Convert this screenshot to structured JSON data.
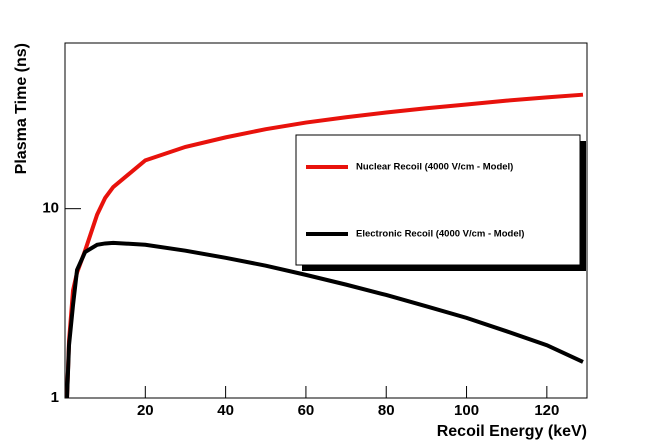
{
  "chart_data": {
    "type": "line",
    "xlabel": "Recoil Energy (keV)",
    "ylabel": "Plasma Time (ns)",
    "x": [
      0.5,
      1,
      2,
      3,
      5,
      8,
      10,
      12,
      20,
      30,
      40,
      50,
      60,
      70,
      80,
      90,
      100,
      110,
      120,
      129
    ],
    "series": [
      {
        "name": "Nuclear Recoil (4000 V/cm - Model)",
        "color": "#e8120c",
        "values": [
          1,
          2.0,
          3.7,
          4.6,
          6.0,
          9.3,
          11.4,
          13.0,
          18,
          21.2,
          23.8,
          26.3,
          28.5,
          30.4,
          32.2,
          33.9,
          35.5,
          37.2,
          38.7,
          40.0
        ]
      },
      {
        "name": "Electronic Recoil (4000 V/cm - Model)",
        "color": "#000000",
        "values": [
          1,
          1.9,
          3.1,
          4.75,
          5.9,
          6.45,
          6.55,
          6.6,
          6.45,
          6.0,
          5.5,
          5.0,
          4.47,
          3.97,
          3.5,
          3.05,
          2.65,
          2.25,
          1.9,
          1.55
        ]
      }
    ],
    "xlim": [
      0,
      130
    ],
    "xticks": [
      20,
      40,
      60,
      80,
      100,
      120
    ],
    "ylim": [
      1,
      75
    ],
    "yticks": [
      1,
      10
    ],
    "log_y": true,
    "legend": "right"
  }
}
